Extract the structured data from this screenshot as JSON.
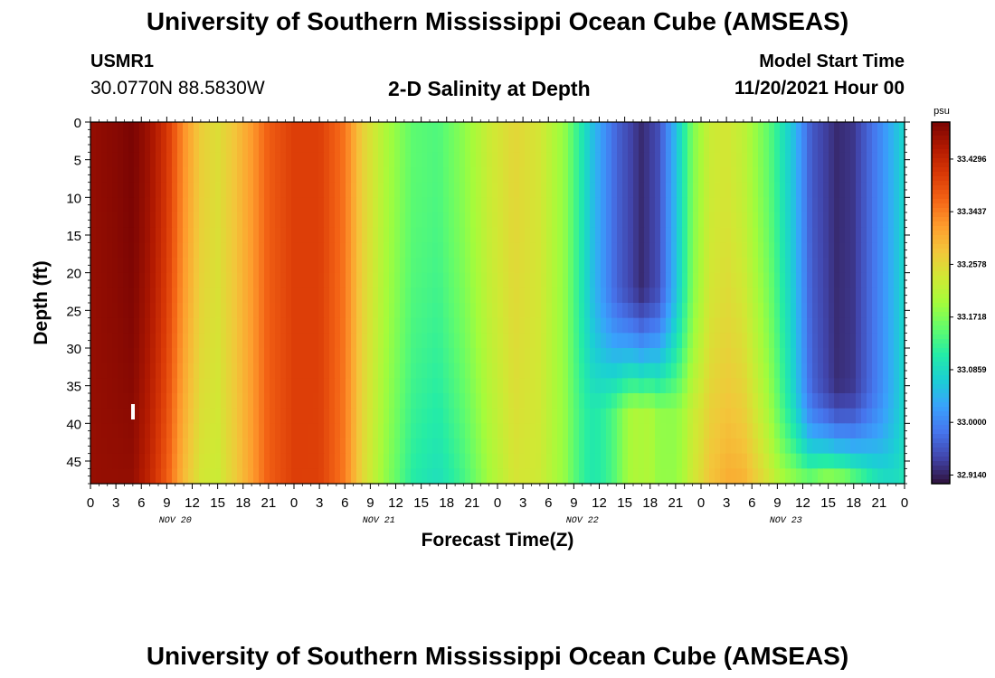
{
  "header": {
    "title": "University of Southern Mississippi Ocean Cube (AMSEAS)",
    "station": "USMR1",
    "coords": "30.0770N  88.5830W",
    "subtitle": "2-D Salinity at Depth",
    "start_label": "Model Start Time",
    "start_value": "11/20/2021 Hour 00",
    "footer_title": "University of Southern Mississippi Ocean Cube (AMSEAS)"
  },
  "chart_data": {
    "type": "heatmap",
    "xlabel": "Forecast Time(Z)",
    "ylabel": "Depth (ft)",
    "x_tick_labels": [
      "0",
      "3",
      "6",
      "9",
      "12",
      "15",
      "18",
      "21",
      "0",
      "3",
      "6",
      "9",
      "12",
      "15",
      "18",
      "21",
      "0",
      "3",
      "6",
      "9",
      "12",
      "15",
      "18",
      "21",
      "0",
      "3",
      "6",
      "9",
      "12",
      "15",
      "18",
      "21",
      "0"
    ],
    "day_labels": [
      "NOV 20",
      "NOV 21",
      "NOV 22",
      "NOV 23"
    ],
    "xlim_hours": [
      0,
      96
    ],
    "ylim": [
      0,
      48
    ],
    "y_ticks": [
      0,
      5,
      10,
      15,
      20,
      25,
      30,
      35,
      40,
      45
    ],
    "y_reversed": true,
    "colorbar": {
      "unit": "psu",
      "labels": [
        "33.4296",
        "33.3437",
        "33.2578",
        "33.1718",
        "33.0859",
        "33.0000",
        "32.9140"
      ],
      "range": [
        32.9,
        33.49
      ]
    },
    "colormap": [
      "#30123b",
      "#4145ab",
      "#4675ed",
      "#39a2fc",
      "#1bcfd4",
      "#24eca6",
      "#61fc6c",
      "#a4fc3b",
      "#d1e834",
      "#f3c63a",
      "#fe9b2d",
      "#f36315",
      "#d93806",
      "#b11901",
      "#7a0403"
    ],
    "description_profile": [
      {
        "h": 0,
        "s": 33.47
      },
      {
        "h": 3,
        "s": 33.48
      },
      {
        "h": 5,
        "s": 33.49
      },
      {
        "h": 7,
        "s": 33.46
      },
      {
        "h": 9,
        "s": 33.41
      },
      {
        "h": 11,
        "s": 33.33
      },
      {
        "h": 13,
        "s": 33.27
      },
      {
        "h": 15,
        "s": 33.25
      },
      {
        "h": 17,
        "s": 33.28
      },
      {
        "h": 19,
        "s": 33.32
      },
      {
        "h": 21,
        "s": 33.37
      },
      {
        "h": 24,
        "s": 33.4
      },
      {
        "h": 27,
        "s": 33.4
      },
      {
        "h": 30,
        "s": 33.35
      },
      {
        "h": 32,
        "s": 33.27
      },
      {
        "h": 35,
        "s": 33.2
      },
      {
        "h": 38,
        "s": 33.15
      },
      {
        "h": 41,
        "s": 33.14
      },
      {
        "h": 44,
        "s": 33.18
      },
      {
        "h": 47,
        "s": 33.23
      },
      {
        "h": 50,
        "s": 33.26
      },
      {
        "h": 53,
        "s": 33.24
      },
      {
        "h": 56,
        "s": 33.18
      },
      {
        "h": 59,
        "s": 33.06
      },
      {
        "h": 62,
        "s": 32.97
      },
      {
        "h": 65,
        "s": 32.92
      },
      {
        "h": 67,
        "s": 32.95
      },
      {
        "h": 69,
        "s": 33.05
      },
      {
        "h": 71,
        "s": 33.17
      },
      {
        "h": 73,
        "s": 33.23
      },
      {
        "h": 75,
        "s": 33.24
      },
      {
        "h": 77,
        "s": 33.22
      },
      {
        "h": 80,
        "s": 33.15
      },
      {
        "h": 83,
        "s": 33.05
      },
      {
        "h": 85,
        "s": 32.96
      },
      {
        "h": 88,
        "s": 32.92
      },
      {
        "h": 90,
        "s": 32.93
      },
      {
        "h": 93,
        "s": 33.0
      },
      {
        "h": 96,
        "s": 33.08
      }
    ]
  }
}
